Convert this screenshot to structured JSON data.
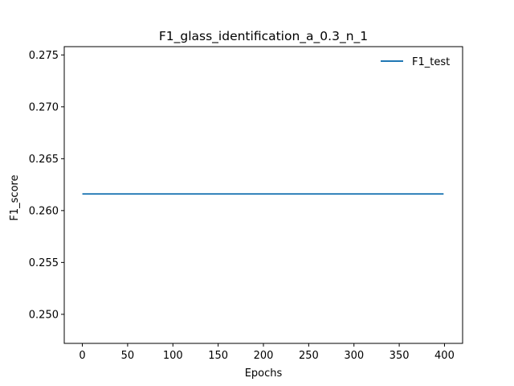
{
  "chart_data": {
    "type": "line",
    "title": "F1_glass_identification_a_0.3_n_1",
    "xlabel": "Epochs",
    "ylabel": "F1_score",
    "xlim": [
      -20,
      420
    ],
    "ylim": [
      0.2472,
      0.2758
    ],
    "xticks": [
      0,
      50,
      100,
      150,
      200,
      250,
      300,
      350,
      400
    ],
    "yticks": [
      0.25,
      0.255,
      0.26,
      0.265,
      0.27,
      0.275
    ],
    "ytick_labels": [
      "0.250",
      "0.255",
      "0.260",
      "0.265",
      "0.270",
      "0.275"
    ],
    "grid": false,
    "legend": "top-right",
    "series": [
      {
        "name": "F1_test",
        "color": "#1f77b4",
        "x": [
          0,
          50,
          100,
          150,
          200,
          250,
          300,
          350,
          399
        ],
        "y": [
          0.2616,
          0.2616,
          0.2616,
          0.2616,
          0.2616,
          0.2616,
          0.2616,
          0.2616,
          0.2616
        ]
      }
    ]
  }
}
